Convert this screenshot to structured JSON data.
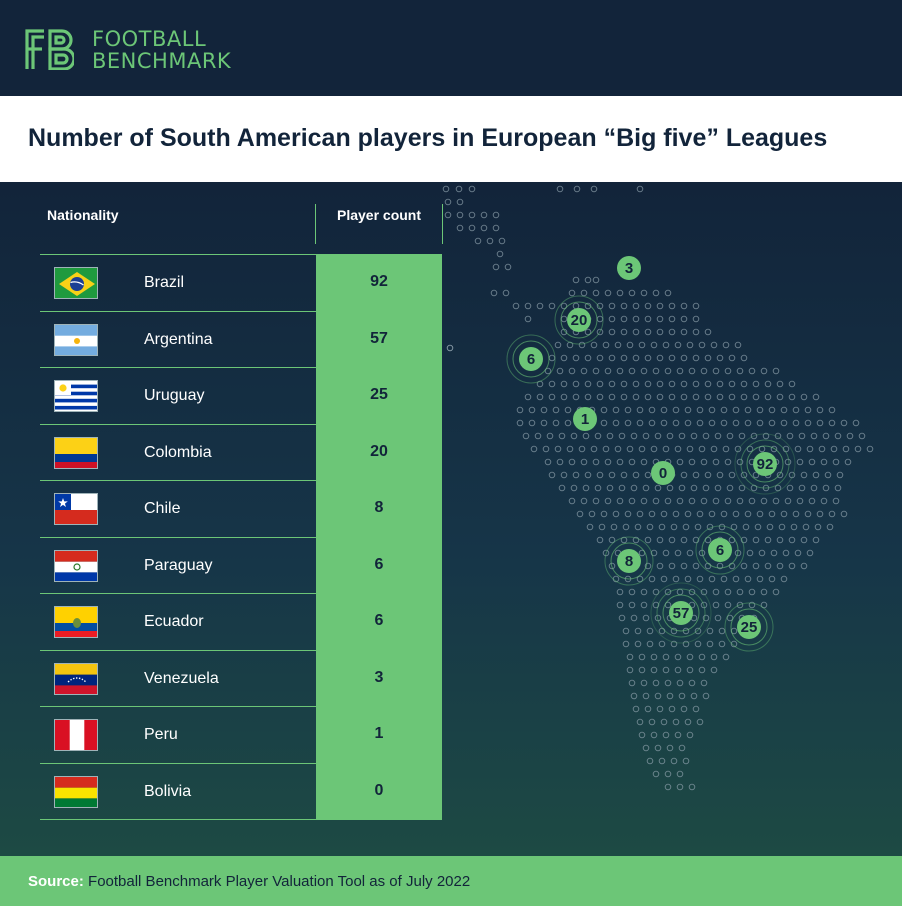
{
  "brand": {
    "line1": "FOOTBALL",
    "line2": "BENCHMARK",
    "accent_color": "#6cc677",
    "dark_color": "#12243a"
  },
  "title": "Number of South American players in European “Big five” Leagues",
  "table": {
    "col_nationality": "Nationality",
    "col_count": "Player count"
  },
  "chart_data": {
    "type": "table",
    "title": "Number of South American players in European “Big five” Leagues",
    "columns": [
      "Nationality",
      "Player count"
    ],
    "rows": [
      {
        "country": "Brazil",
        "value": 92,
        "flag": "brazil-flag"
      },
      {
        "country": "Argentina",
        "value": 57,
        "flag": "argentina-flag"
      },
      {
        "country": "Uruguay",
        "value": 25,
        "flag": "uruguay-flag"
      },
      {
        "country": "Colombia",
        "value": 20,
        "flag": "colombia-flag"
      },
      {
        "country": "Chile",
        "value": 8,
        "flag": "chile-flag"
      },
      {
        "country": "Paraguay",
        "value": 6,
        "flag": "paraguay-flag"
      },
      {
        "country": "Ecuador",
        "value": 6,
        "flag": "ecuador-flag"
      },
      {
        "country": "Venezuela",
        "value": 3,
        "flag": "venezuela-flag"
      },
      {
        "country": "Peru",
        "value": 1,
        "flag": "peru-flag"
      },
      {
        "country": "Bolivia",
        "value": 0,
        "flag": "bolivia-flag"
      }
    ],
    "map_markers": [
      {
        "country": "Venezuela",
        "label": "3"
      },
      {
        "country": "Colombia",
        "label": "20"
      },
      {
        "country": "Ecuador",
        "label": "6"
      },
      {
        "country": "Peru",
        "label": "1"
      },
      {
        "country": "Bolivia",
        "label": "0"
      },
      {
        "country": "Brazil",
        "label": "92"
      },
      {
        "country": "Chile",
        "label": "8"
      },
      {
        "country": "Paraguay",
        "label": "6"
      },
      {
        "country": "Argentina",
        "label": "57"
      },
      {
        "country": "Uruguay",
        "label": "25"
      }
    ]
  },
  "footer": {
    "source_label": "Source:",
    "source_text": " Football Benchmark Player Valuation Tool as of July 2022"
  }
}
